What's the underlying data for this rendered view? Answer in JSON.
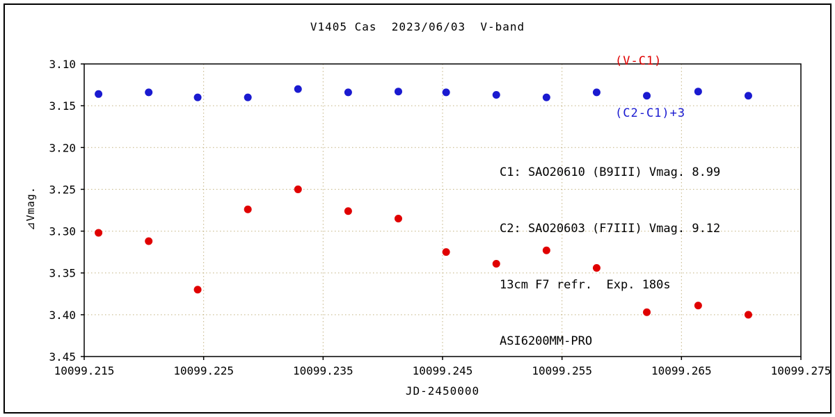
{
  "title": "V1405 Cas  2023/06/03  V-band",
  "legend": {
    "series1": "(V-C1)",
    "series2": "(C2-C1)+3"
  },
  "annotations": {
    "lines": [
      "C1: SAO20610 (B9III) Vmag. 8.99",
      "C2: SAO20603 (F7III) Vmag. 9.12",
      "13cm F7 refr.  Exp. 180s",
      "ASI6200MM-PRO"
    ]
  },
  "axes": {
    "x_label": "JD-2450000",
    "y_label": "⊿Vmag."
  },
  "colors": {
    "series_v_c1": "#e00000",
    "series_c2_c1": "#1a1ad0",
    "grid": "#c2b280",
    "axis": "#000000",
    "background": "#ffffff"
  },
  "chart_data": {
    "type": "scatter",
    "title": "V1405 Cas  2023/06/03  V-band",
    "xlabel": "JD-2450000",
    "ylabel": "⊿Vmag.",
    "grid": true,
    "legend_position": "top-right",
    "xlim": [
      10099.215,
      10099.275
    ],
    "ylim": [
      3.45,
      3.1
    ],
    "y_axis_inverted": true,
    "x_ticks": [
      10099.215,
      10099.225,
      10099.235,
      10099.245,
      10099.255,
      10099.265,
      10099.275
    ],
    "x_tick_labels": [
      "10099.215",
      "10099.225",
      "10099.235",
      "10099.245",
      "10099.255",
      "10099.265",
      "10099.275"
    ],
    "y_ticks": [
      3.1,
      3.15,
      3.2,
      3.25,
      3.3,
      3.35,
      3.4,
      3.45
    ],
    "y_tick_labels": [
      "3.10",
      "3.15",
      "3.20",
      "3.25",
      "3.30",
      "3.35",
      "3.40",
      "3.45"
    ],
    "x": [
      10099.2162,
      10099.2204,
      10099.2245,
      10099.2287,
      10099.2329,
      10099.2371,
      10099.2413,
      10099.2453,
      10099.2495,
      10099.2537,
      10099.2579,
      10099.2621,
      10099.2664,
      10099.2706
    ],
    "series": [
      {
        "name": "(V-C1)",
        "color": "#e00000",
        "y": [
          3.302,
          3.312,
          3.37,
          3.274,
          3.25,
          3.276,
          3.285,
          3.325,
          3.339,
          3.323,
          3.344,
          3.397,
          3.389,
          3.4
        ]
      },
      {
        "name": "(C2-C1)+3",
        "color": "#1a1ad0",
        "y": [
          3.136,
          3.134,
          3.14,
          3.14,
          3.13,
          3.134,
          3.133,
          3.134,
          3.137,
          3.14,
          3.134,
          3.138,
          3.133,
          3.138
        ]
      }
    ]
  }
}
